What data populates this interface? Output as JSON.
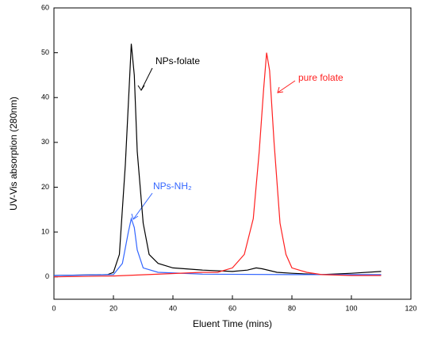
{
  "chart_data": {
    "type": "line",
    "x_label": "Eluent Time (mins)",
    "y_label": "UV-Vis absorption (280nm)",
    "xlim": [
      0,
      120
    ],
    "xticks": [
      0,
      20,
      40,
      60,
      80,
      100,
      120
    ],
    "ylim": [
      -5,
      60
    ],
    "yticks": [
      0,
      10,
      20,
      30,
      40,
      50,
      60
    ],
    "grid": false,
    "series": [
      {
        "name": "NPs-folate",
        "color": "#000000",
        "x": [
          0,
          10,
          18,
          20,
          22,
          24,
          25.5,
          26,
          27,
          28,
          30,
          32,
          35,
          40,
          50,
          60,
          65,
          68,
          70,
          75,
          80,
          90,
          100,
          110
        ],
        "values": [
          0.3,
          0.4,
          0.5,
          1,
          5,
          25,
          45,
          52,
          45,
          28,
          12,
          5,
          3,
          2,
          1.5,
          1.2,
          1.5,
          2,
          1.8,
          1,
          0.8,
          0.5,
          0.8,
          1.2
        ]
      },
      {
        "name": "NPs-NH₂",
        "color": "#3366ff",
        "x": [
          0,
          20,
          23,
          25,
          26,
          27,
          28,
          30,
          35,
          50,
          80,
          110
        ],
        "values": [
          0.3,
          0.5,
          3,
          10,
          13,
          11,
          6,
          2,
          1,
          0.6,
          0.5,
          0.5
        ]
      },
      {
        "name": "pure folate",
        "color": "#ff2020",
        "x": [
          0,
          20,
          50,
          55,
          60,
          64,
          67,
          69,
          70.5,
          71.5,
          72.5,
          74,
          76,
          78,
          80,
          85,
          90,
          100,
          110
        ],
        "values": [
          0,
          0.2,
          1,
          1,
          2,
          5,
          13,
          28,
          42,
          50,
          46,
          30,
          12,
          5,
          2,
          1,
          0.5,
          0.3,
          0.3
        ]
      }
    ]
  }
}
